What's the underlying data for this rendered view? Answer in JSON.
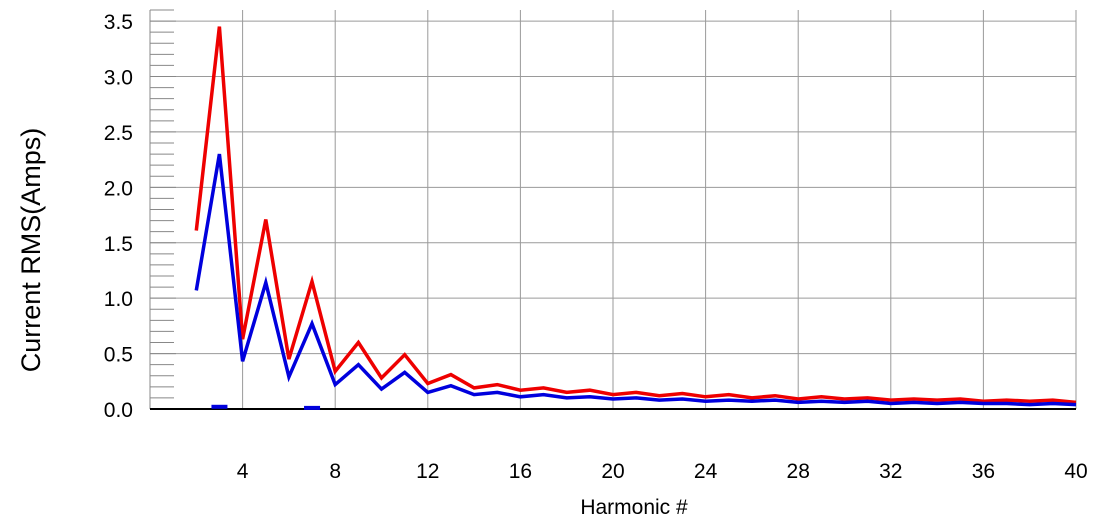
{
  "chart_data": {
    "type": "line",
    "title": "",
    "xlabel": "Harmonic #",
    "ylabel": "Current RMS(Amps)",
    "xlim": [
      0,
      40
    ],
    "ylim": [
      0,
      3.6
    ],
    "grid": true,
    "x_ticks": [
      "4",
      "8",
      "12",
      "16",
      "20",
      "24",
      "28",
      "32",
      "36",
      "40"
    ],
    "y_ticks": [
      "0.0",
      "0.5",
      "1.0",
      "1.5",
      "2.0",
      "2.5",
      "3.0",
      "3.5"
    ],
    "x": [
      2,
      3,
      4,
      5,
      6,
      7,
      8,
      9,
      10,
      11,
      12,
      13,
      14,
      15,
      16,
      17,
      18,
      19,
      20,
      21,
      22,
      23,
      24,
      25,
      26,
      27,
      28,
      29,
      30,
      31,
      32,
      33,
      34,
      35,
      36,
      37,
      38,
      39,
      40
    ],
    "series": [
      {
        "color": "#ee0000",
        "values": [
          1.61,
          3.45,
          0.63,
          1.71,
          0.45,
          1.15,
          0.34,
          0.6,
          0.28,
          0.49,
          0.23,
          0.31,
          0.19,
          0.22,
          0.17,
          0.19,
          0.15,
          0.17,
          0.13,
          0.15,
          0.12,
          0.14,
          0.11,
          0.13,
          0.1,
          0.12,
          0.09,
          0.11,
          0.09,
          0.1,
          0.08,
          0.09,
          0.08,
          0.09,
          0.07,
          0.08,
          0.07,
          0.08,
          0.06
        ]
      },
      {
        "color": "#0000dd",
        "values": [
          1.07,
          2.3,
          0.43,
          1.14,
          0.29,
          0.77,
          0.22,
          0.4,
          0.18,
          0.33,
          0.15,
          0.21,
          0.13,
          0.15,
          0.11,
          0.13,
          0.1,
          0.11,
          0.09,
          0.1,
          0.08,
          0.09,
          0.07,
          0.08,
          0.07,
          0.08,
          0.06,
          0.07,
          0.06,
          0.07,
          0.05,
          0.06,
          0.05,
          0.06,
          0.05,
          0.05,
          0.04,
          0.05,
          0.04
        ]
      }
    ],
    "markers": {
      "color": "#0000dd",
      "values": [
        {
          "x": 3,
          "y": 0.02
        },
        {
          "x": 7,
          "y": 0.01
        }
      ]
    }
  },
  "colors": {
    "grid": "#9a9a9a",
    "axis": "#000000",
    "tick": "#888888"
  }
}
